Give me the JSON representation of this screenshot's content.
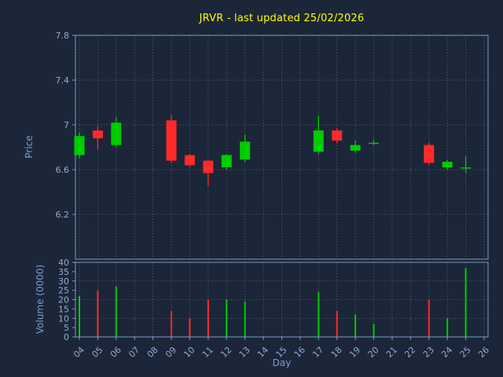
{
  "colors": {
    "background": "#1b2638",
    "up": "#00cc00",
    "down": "#ff2a2a",
    "title": "#ffff00",
    "axis_label": "#7d9bd2",
    "tick_label": "#96abd2",
    "spine": "#7a9cc8",
    "grid": "#7c8494"
  },
  "chart_data": {
    "type": "candlestick",
    "title": "JRVR - last updated 25/02/2026",
    "xlabel": "Day",
    "grid": true,
    "x_tick_labels": [
      "04",
      "05",
      "06",
      "07",
      "08",
      "09",
      "10",
      "11",
      "12",
      "13",
      "14",
      "15",
      "16",
      "17",
      "18",
      "19",
      "20",
      "21",
      "22",
      "23",
      "24",
      "25",
      "26"
    ],
    "x_day_range": [
      4,
      26
    ],
    "price_panel": {
      "ylabel": "Price",
      "ylim": [
        5.8,
        7.8
      ],
      "y_ticks": [
        6.2,
        6.6,
        7,
        7.4,
        7.8
      ],
      "y_tick_labels": [
        "6.2",
        "6.6",
        "7",
        "7.4",
        "7.8"
      ],
      "candles": [
        {
          "day": 4,
          "open": 6.73,
          "high": 6.93,
          "low": 6.7,
          "close": 6.9
        },
        {
          "day": 5,
          "open": 6.95,
          "high": 6.99,
          "low": 6.78,
          "close": 6.88
        },
        {
          "day": 6,
          "open": 6.82,
          "high": 7.07,
          "low": 6.8,
          "close": 7.02
        },
        {
          "day": 9,
          "open": 7.04,
          "high": 7.09,
          "low": 6.66,
          "close": 6.68
        },
        {
          "day": 10,
          "open": 6.73,
          "high": 6.74,
          "low": 6.62,
          "close": 6.64
        },
        {
          "day": 11,
          "open": 6.68,
          "high": 6.69,
          "low": 6.45,
          "close": 6.57
        },
        {
          "day": 12,
          "open": 6.62,
          "high": 6.74,
          "low": 6.6,
          "close": 6.73
        },
        {
          "day": 13,
          "open": 6.69,
          "high": 6.91,
          "low": 6.67,
          "close": 6.85
        },
        {
          "day": 17,
          "open": 6.76,
          "high": 7.08,
          "low": 6.74,
          "close": 6.95
        },
        {
          "day": 18,
          "open": 6.95,
          "high": 6.97,
          "low": 6.84,
          "close": 6.86
        },
        {
          "day": 19,
          "open": 6.77,
          "high": 6.86,
          "low": 6.75,
          "close": 6.82
        },
        {
          "day": 20,
          "open": 6.84,
          "high": 6.87,
          "low": 6.82,
          "close": 6.84
        },
        {
          "day": 23,
          "open": 6.82,
          "high": 6.84,
          "low": 6.64,
          "close": 6.66
        },
        {
          "day": 24,
          "open": 6.62,
          "high": 6.69,
          "low": 6.6,
          "close": 6.67
        },
        {
          "day": 25,
          "open": 6.61,
          "high": 6.72,
          "low": 6.57,
          "close": 6.62
        }
      ]
    },
    "volume_panel": {
      "ylabel": "Volume (0000)",
      "ylim": [
        0,
        40
      ],
      "y_ticks": [
        0,
        5,
        10,
        15,
        20,
        25,
        30,
        35,
        40
      ],
      "y_tick_labels": [
        "0",
        "5",
        "10",
        "15",
        "20",
        "25",
        "30",
        "35",
        "40"
      ],
      "volumes": [
        {
          "day": 4,
          "value": 22
        },
        {
          "day": 5,
          "value": 25
        },
        {
          "day": 6,
          "value": 27
        },
        {
          "day": 9,
          "value": 14
        },
        {
          "day": 10,
          "value": 10
        },
        {
          "day": 11,
          "value": 20
        },
        {
          "day": 12,
          "value": 20
        },
        {
          "day": 13,
          "value": 19
        },
        {
          "day": 17,
          "value": 24
        },
        {
          "day": 18,
          "value": 14
        },
        {
          "day": 19,
          "value": 12
        },
        {
          "day": 20,
          "value": 7
        },
        {
          "day": 23,
          "value": 20
        },
        {
          "day": 24,
          "value": 10
        },
        {
          "day": 25,
          "value": 37
        }
      ]
    }
  }
}
